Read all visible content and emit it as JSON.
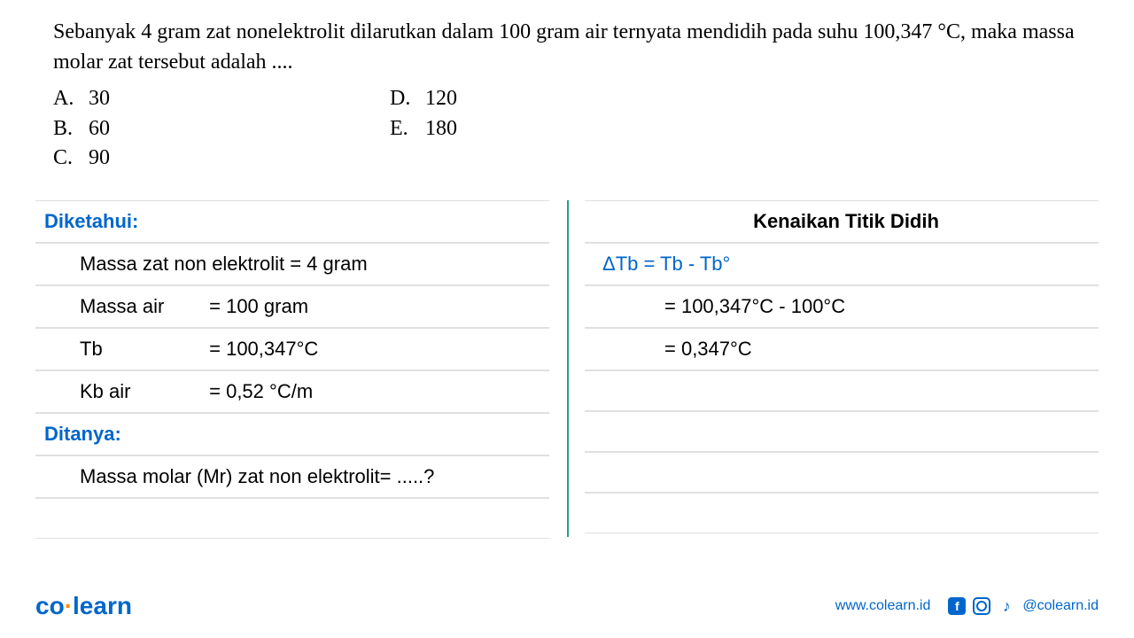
{
  "question": {
    "text": "Sebanyak 4 gram zat nonelektrolit dilarutkan dalam 100 gram air ternyata mendidih pada suhu 100,347 °C, maka massa molar zat tersebut adalah ....",
    "options": {
      "A": "30",
      "B": "60",
      "C": "90",
      "D": "120",
      "E": "180"
    }
  },
  "solution": {
    "left": {
      "header": "Diketahui:",
      "row1": "Massa zat non elektrolit = 4 gram",
      "row2_label": "Massa air",
      "row2_value": "= 100 gram",
      "row3_label": "Tb",
      "row3_value": "= 100,347°C",
      "row4_label": "Kb air",
      "row4_value": "= 0,52 °C/m",
      "header2": "Ditanya:",
      "row5": "Massa molar (Mr) zat non elektrolit= .....?"
    },
    "right": {
      "header": "Kenaikan Titik Didih",
      "row1": "ΔTb = Tb - Tb°",
      "row2": "= 100,347°C - 100°C",
      "row3": "= 0,347°C"
    }
  },
  "footer": {
    "logo_co": "co",
    "logo_learn": "learn",
    "website": "www.colearn.id",
    "handle": "@colearn.id"
  },
  "colors": {
    "primary_blue": "#0066cc",
    "divider_green": "#2a9d8f",
    "border_gray": "#e0e0e0",
    "text_black": "#000000",
    "logo_orange": "#ff8c00"
  },
  "typography": {
    "question_font": "Georgia, Times New Roman, serif",
    "solution_font": "Comic Sans MS, cursive",
    "question_size": 24,
    "solution_size": 22,
    "footer_size": 16,
    "logo_size": 28
  }
}
